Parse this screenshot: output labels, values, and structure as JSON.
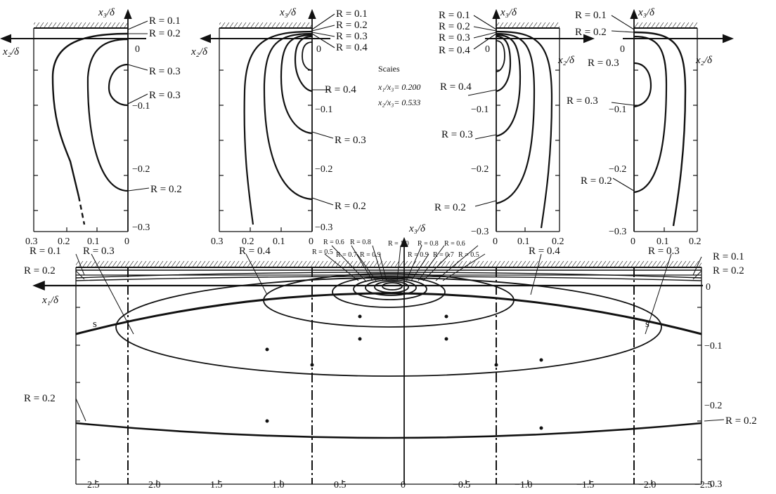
{
  "ink_color": "#111111",
  "background_color": "#ffffff",
  "icons": {
    "axis_arrow": "arrow-left-icon",
    "wall": "hatched-wall-icon"
  },
  "axes": {
    "x3_delta": "x₃/δ",
    "x2_delta": "x₂/δ",
    "x1_delta": "x₁/δ"
  },
  "scales": {
    "title": "Scaies",
    "line1": "x₁/x₃= 0.200",
    "line2": "x₂/x₃= 0.533"
  },
  "ticks": {
    "vertical_small": [
      "0",
      "−0.1",
      "−0.2",
      "−0.3"
    ],
    "horizontal_left_panels": [
      "0.3",
      "0.2",
      "0.1",
      "0"
    ],
    "horizontal_right_panels": [
      "0",
      "0.1",
      "0.2"
    ],
    "vertical_bottom": [
      "0",
      "−0.1",
      "−0.2",
      "−0.3"
    ],
    "horizontal_bottom": [
      "2.5",
      "2.0",
      "1.5",
      "1.0",
      "0.5",
      "0",
      "−0.5",
      "−1.0",
      "−1.5",
      "−2.0",
      "−2.5"
    ]
  },
  "labels": {
    "r01": "R = 0.1",
    "r02": "R = 0.2",
    "r03": "R = 0.3",
    "r04": "R = 0.4",
    "r05": "R = 0.5",
    "r06": "R = 0.6",
    "r07": "R = 0.7",
    "r08": "R = 0.8",
    "r09": "R = 0.9",
    "r10": "R = 1.0",
    "s": "s"
  }
}
